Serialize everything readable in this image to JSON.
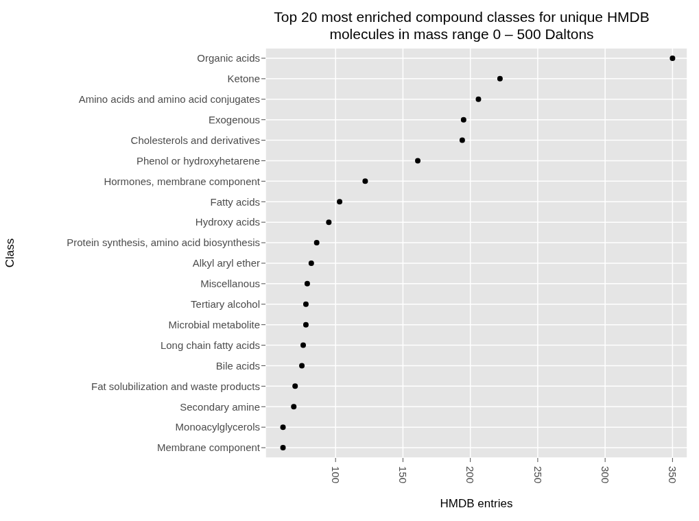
{
  "chart_data": {
    "type": "scatter",
    "title": "Top 20 most enriched compound classes for unique HMDB molecules in mass range 0 – 500 Daltons",
    "xlabel": "HMDB entries",
    "ylabel": "Class",
    "orientation": "horizontal",
    "categories": [
      "Organic acids",
      "Ketone",
      "Amino acids and amino acid conjugates",
      "Exogenous",
      "Cholesterols and derivatives",
      "Phenol or hydroxyhetarene",
      "Hormones, membrane component",
      "Fatty acids",
      "Hydroxy acids",
      "Protein synthesis, amino acid biosynthesis",
      "Alkyl aryl ether",
      "Miscellanous",
      "Tertiary alcohol",
      "Microbial metabolite",
      "Long chain fatty acids",
      "Bile acids",
      "Fat solubilization and waste products",
      "Secondary amine",
      "Monoacylglycerols",
      "Membrane component"
    ],
    "values": [
      350,
      222,
      206,
      195,
      194,
      161,
      122,
      103,
      95,
      86,
      82,
      79,
      78,
      78,
      76,
      75,
      70,
      69,
      61,
      61
    ],
    "color": "#000000",
    "marker": "circle",
    "xlim": [
      48,
      361
    ],
    "xticks": [
      100,
      150,
      200,
      250,
      300,
      350
    ],
    "grid": true
  }
}
